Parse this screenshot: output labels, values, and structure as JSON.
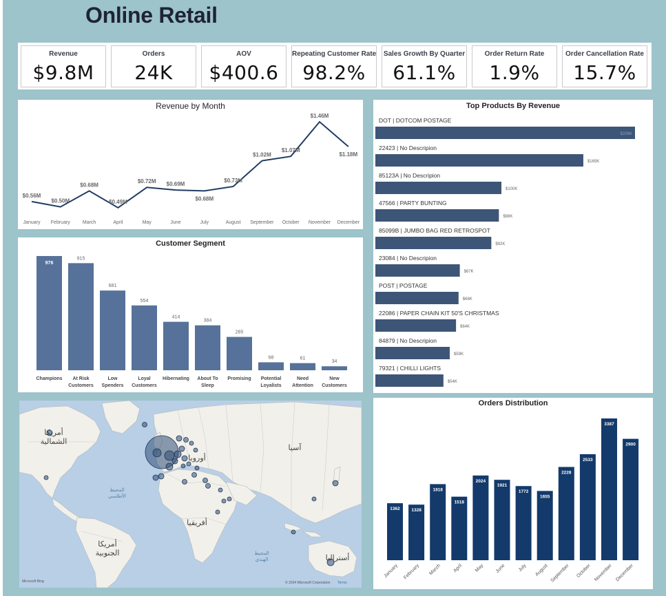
{
  "dashboard": {
    "title": "Online Retail"
  },
  "kpis": [
    {
      "label": "Revenue",
      "value": "$9.8M"
    },
    {
      "label": "Orders",
      "value": "24K"
    },
    {
      "label": "AOV",
      "value": "$400.6"
    },
    {
      "label": "Repeating Customer Rate",
      "value": "98.2%"
    },
    {
      "label": "Sales Growth By Quarter",
      "value": "61.1%"
    },
    {
      "label": "Order Return Rate",
      "value": "1.9%"
    },
    {
      "label": "Order Cancellation Rate",
      "value": "15.7%"
    }
  ],
  "revenue_chart": {
    "title": "Revenue by Month",
    "chart_data": {
      "type": "line",
      "categories": [
        "January",
        "February",
        "March",
        "April",
        "May",
        "June",
        "July",
        "August",
        "September",
        "October",
        "November",
        "December"
      ],
      "values": [
        0.56,
        0.5,
        0.68,
        0.49,
        0.72,
        0.69,
        0.68,
        0.73,
        1.02,
        1.07,
        1.46,
        1.18
      ],
      "labels": [
        "$0.56M",
        "$0.50M",
        "$0.68M",
        "$0.49M",
        "$0.72M",
        "$0.69M",
        "$0.68M",
        "$0.73M",
        "$1.02M",
        "$1.07M",
        "$1.46M",
        "$1.18M"
      ],
      "color": "#1f3b62"
    }
  },
  "segment_chart": {
    "title": "Customer Segment",
    "chart_data": {
      "type": "bar",
      "categories": [
        [
          "Champions"
        ],
        [
          "At Risk",
          "Customers"
        ],
        [
          "Low",
          "Spenders"
        ],
        [
          "Loyal",
          "Customers"
        ],
        [
          "Hibernating"
        ],
        [
          "About To",
          "Sleep"
        ],
        [
          "Promising"
        ],
        [
          "Potential",
          "Loyalists"
        ],
        [
          "Need",
          "Attention"
        ],
        [
          "New",
          "Customers"
        ]
      ],
      "values": [
        976,
        915,
        681,
        554,
        414,
        384,
        285,
        68,
        61,
        34
      ],
      "color": "#56729a"
    }
  },
  "products_chart": {
    "title": "Top Products By Revenue",
    "chart_data": {
      "type": "bar",
      "orientation": "horizontal",
      "categories": [
        "DOT | DOTCOM POSTAGE",
        "22423 | No Descripion",
        "85123A | No Descripion",
        "47566 | PARTY BUNTING",
        "85099B | JUMBO BAG RED RETROSPOT",
        "23084 | No Descripion",
        "POST | POSTAGE",
        "22086 | PAPER CHAIN KIT 50'S CHRISTMAS",
        "84879 | No Descripion",
        "79321 | CHILLI LIGHTS"
      ],
      "values": [
        206,
        165,
        100,
        98,
        92,
        67,
        66,
        64,
        59,
        54
      ],
      "labels": [
        "$206K",
        "$165K",
        "$100K",
        "$98K",
        "$92K",
        "$67K",
        "$66K",
        "$64K",
        "$59K",
        "$54K"
      ],
      "color": "#3d5577"
    }
  },
  "map": {
    "labels": {
      "north_america": [
        "أمريكا",
        "الشمالية"
      ],
      "south_america": [
        "أمريكا",
        "الجنوبية"
      ],
      "europe": "أوروبا",
      "asia": "آسيا",
      "africa": "أفريقيا",
      "australia": "أستراليا",
      "atlantic": [
        "المحيط",
        "الأطلسي"
      ],
      "indian": [
        "المحيط",
        "الهندي"
      ]
    },
    "attribution": "© 2024 Microsoft Corporation",
    "terms": "Terms",
    "logo": "Microsoft Bing"
  },
  "orders_chart": {
    "title": "Orders Distribution",
    "chart_data": {
      "type": "bar",
      "categories": [
        "January",
        "February",
        "March",
        "April",
        "May",
        "June",
        "July",
        "August",
        "September",
        "October",
        "November",
        "December"
      ],
      "values": [
        1362,
        1328,
        1818,
        1518,
        2024,
        1921,
        1772,
        1655,
        2228,
        2533,
        3387,
        2900
      ],
      "color": "#133a6b"
    }
  }
}
